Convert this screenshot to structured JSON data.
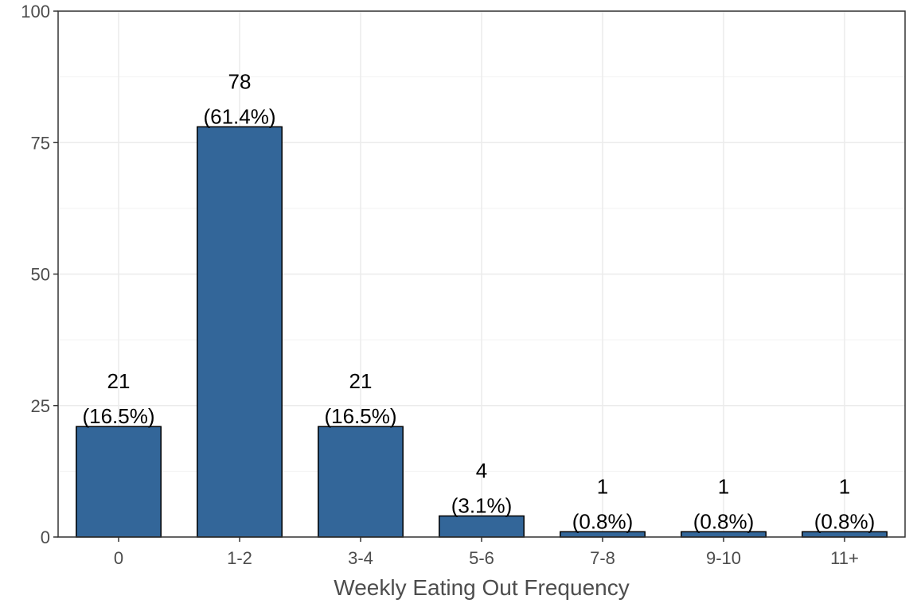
{
  "chart_data": {
    "type": "bar",
    "categories": [
      "0",
      "1-2",
      "3-4",
      "5-6",
      "7-8",
      "9-10",
      "11+"
    ],
    "values": [
      21,
      78,
      21,
      4,
      1,
      1,
      1
    ],
    "value_labels": [
      "21",
      "78",
      "21",
      "4",
      "1",
      "1",
      "1"
    ],
    "percent_labels": [
      "(16.5%)",
      "(61.4%)",
      "(16.5%)",
      "(3.1%)",
      "(0.8%)",
      "(0.8%)",
      "(0.8%)"
    ],
    "title": "",
    "xlabel": "Weekly Eating Out Frequency",
    "ylabel": "",
    "ylim": [
      0,
      100
    ],
    "yticks": [
      0,
      25,
      50,
      75,
      100
    ],
    "grid": true,
    "legend": "none",
    "bar_color": "#336699",
    "bar_edge_color": "#000000"
  }
}
